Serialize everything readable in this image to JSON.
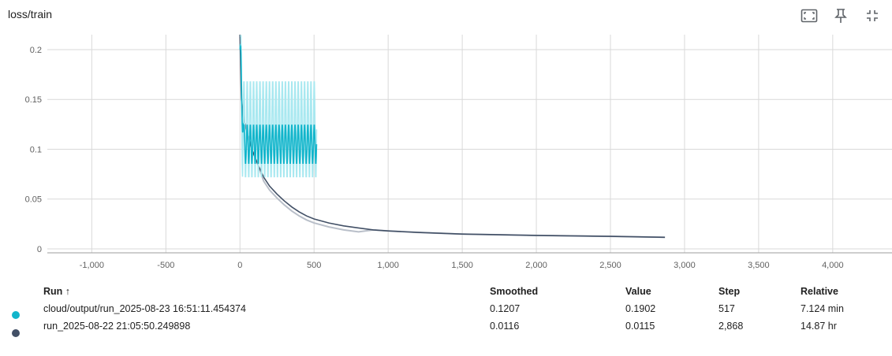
{
  "title": "loss/train",
  "toolbar": {
    "icons": [
      "fit-domain-icon",
      "pin-icon",
      "collapse-icon"
    ]
  },
  "chart_data": {
    "type": "line",
    "title": "loss/train",
    "xlim": [
      -1300,
      4400
    ],
    "ylim": [
      -0.004,
      0.215
    ],
    "x_ticks": [
      "-1,000",
      "-500",
      "0",
      "500",
      "1,000",
      "1,500",
      "2,000",
      "2,500",
      "3,000",
      "3,500",
      "4,000"
    ],
    "x_tick_values": [
      -1000,
      -500,
      0,
      500,
      1000,
      1500,
      2000,
      2500,
      3000,
      3500,
      4000
    ],
    "y_ticks": [
      "0",
      "0.05",
      "0.1",
      "0.15",
      "0.2"
    ],
    "y_tick_values": [
      0,
      0.05,
      0.1,
      0.15,
      0.2
    ],
    "grid": true,
    "series": [
      {
        "name": "cloud/output/run_2025-08-23 16:51:11.454374",
        "color": "#12b5cb",
        "raw_color": "#a8e8f0",
        "steps": [
          0,
          517
        ],
        "raw_base": 0.12,
        "raw_amp": 0.05,
        "smooth_base": 0.105,
        "smooth_amp": 0.02,
        "cycles": 24
      },
      {
        "name": "run_2025-08-22 21:05:50.249898",
        "color": "#425066",
        "raw_color": "#b9bfc9",
        "steps": [
          0,
          2868
        ],
        "points": [
          [
            0,
            0.215
          ],
          [
            10,
            0.15
          ],
          [
            25,
            0.13
          ],
          [
            50,
            0.115
          ],
          [
            80,
            0.1
          ],
          [
            120,
            0.085
          ],
          [
            160,
            0.072
          ],
          [
            200,
            0.063
          ],
          [
            250,
            0.055
          ],
          [
            300,
            0.048
          ],
          [
            350,
            0.042
          ],
          [
            400,
            0.037
          ],
          [
            450,
            0.033
          ],
          [
            500,
            0.03
          ],
          [
            600,
            0.026
          ],
          [
            700,
            0.023
          ],
          [
            800,
            0.021
          ],
          [
            900,
            0.019
          ],
          [
            1000,
            0.018
          ],
          [
            1200,
            0.0165
          ],
          [
            1500,
            0.0148
          ],
          [
            2000,
            0.0135
          ],
          [
            2500,
            0.0125
          ],
          [
            2868,
            0.0116
          ]
        ]
      }
    ]
  },
  "table": {
    "headers": {
      "run": "Run ↑",
      "smoothed": "Smoothed",
      "value": "Value",
      "step": "Step",
      "relative": "Relative"
    },
    "rows": [
      {
        "color": "#12b5cb",
        "run": "cloud/output/run_2025-08-23 16:51:11.454374",
        "smoothed": "0.1207",
        "value": "0.1902",
        "step": "517",
        "relative": "7.124 min"
      },
      {
        "color": "#425066",
        "run": "run_2025-08-22 21:05:50.249898",
        "smoothed": "0.0116",
        "value": "0.0115",
        "step": "2,868",
        "relative": "14.87 hr"
      }
    ]
  }
}
